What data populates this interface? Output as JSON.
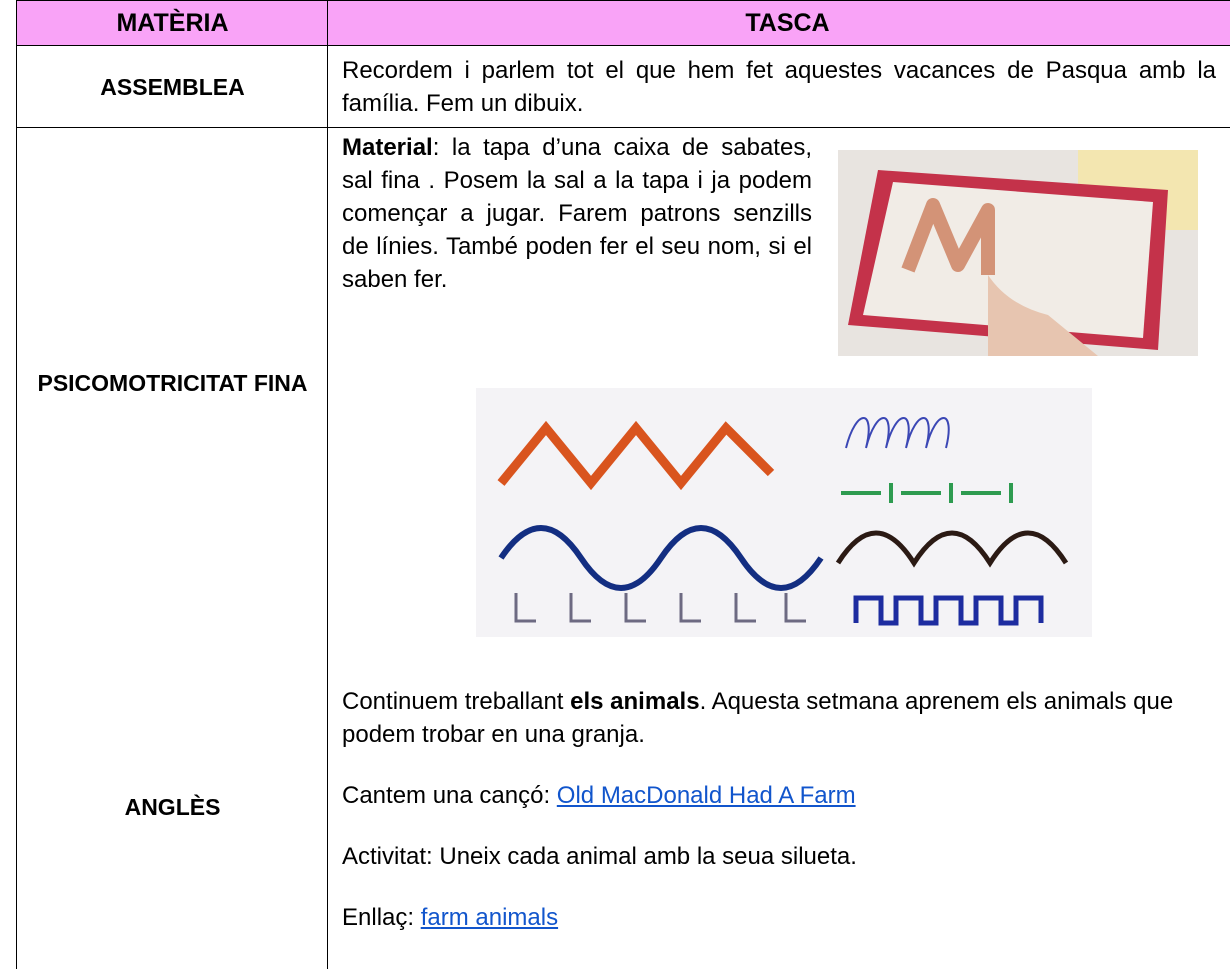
{
  "table": {
    "header": [
      "MATÈRIA",
      "TASCA"
    ],
    "rows": [
      {
        "subject": "ASSEMBLEA",
        "task": [
          "Recordem i parlem tot el que hem fet aquestes vacances de Pasqua amb la família. Fem un dibuix."
        ]
      },
      {
        "subject": "PSICOMOTRICITAT FINA",
        "task": [
          "Material",
          ": la tapa d’una caixa de sabates, sal fina . Posem la sal a la tapa i ja podem començar a jugar. Farem patrons senzills de línies. També poden fer el seu nom, si el saben fer."
        ]
      },
      {
        "subject": "ANGLÈS",
        "task": [
          "Continuem treballant ",
          "els animals",
          ". Aquesta setmana aprenem els animals que podem trobar en una granja.",
          "Cantem una cançó: ",
          "Old MacDonald Had A Farm",
          "Activitat: Uneix cada animal amb la seua silueta.",
          "Enllaç: ",
          "farm animals"
        ]
      }
    ]
  }
}
